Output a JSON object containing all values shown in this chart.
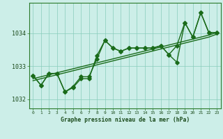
{
  "bg_color": "#cceee8",
  "grid_color": "#88ccbb",
  "line_color": "#1a6b1a",
  "xlabel": "Graphe pression niveau de la mer (hPa)",
  "hours": [
    0,
    1,
    2,
    3,
    4,
    5,
    6,
    7,
    8,
    9,
    10,
    11,
    12,
    13,
    14,
    15,
    16,
    17,
    18,
    19,
    20,
    21,
    22,
    23
  ],
  "series1": [
    1032.72,
    1032.42,
    1032.78,
    1032.78,
    1032.22,
    1032.38,
    1032.68,
    1032.68,
    1033.22,
    1033.78,
    1033.55,
    1033.45,
    1033.55,
    1033.55,
    1033.55,
    1033.55,
    1033.62,
    1033.35,
    1033.62,
    1034.32,
    1033.88,
    1034.62,
    1034.02,
    1034.02
  ],
  "series2": [
    1032.72,
    1032.42,
    1032.78,
    1032.78,
    1032.22,
    1032.35,
    1032.62,
    1032.62,
    1033.32,
    1033.78,
    1033.55,
    1033.45,
    1033.55,
    1033.55,
    1033.55,
    1033.55,
    1033.62,
    1033.35,
    1033.12,
    1034.32,
    1033.88,
    1034.62,
    1034.02,
    1034.02
  ],
  "trend": [
    1032.62,
    1032.68,
    1032.74,
    1032.8,
    1032.86,
    1032.92,
    1032.98,
    1033.04,
    1033.1,
    1033.16,
    1033.22,
    1033.28,
    1033.34,
    1033.4,
    1033.46,
    1033.52,
    1033.58,
    1033.64,
    1033.7,
    1033.76,
    1033.82,
    1033.88,
    1033.94,
    1034.02
  ],
  "trend2": [
    1032.56,
    1032.62,
    1032.68,
    1032.74,
    1032.8,
    1032.86,
    1032.92,
    1032.98,
    1033.04,
    1033.1,
    1033.16,
    1033.22,
    1033.28,
    1033.34,
    1033.4,
    1033.46,
    1033.52,
    1033.58,
    1033.64,
    1033.7,
    1033.76,
    1033.82,
    1033.88,
    1033.97
  ],
  "ylim": [
    1031.72,
    1034.92
  ],
  "yticks": [
    1032,
    1033,
    1034
  ],
  "xlim": [
    -0.5,
    23.5
  ],
  "marker_size": 2.8,
  "line_width": 1.0
}
